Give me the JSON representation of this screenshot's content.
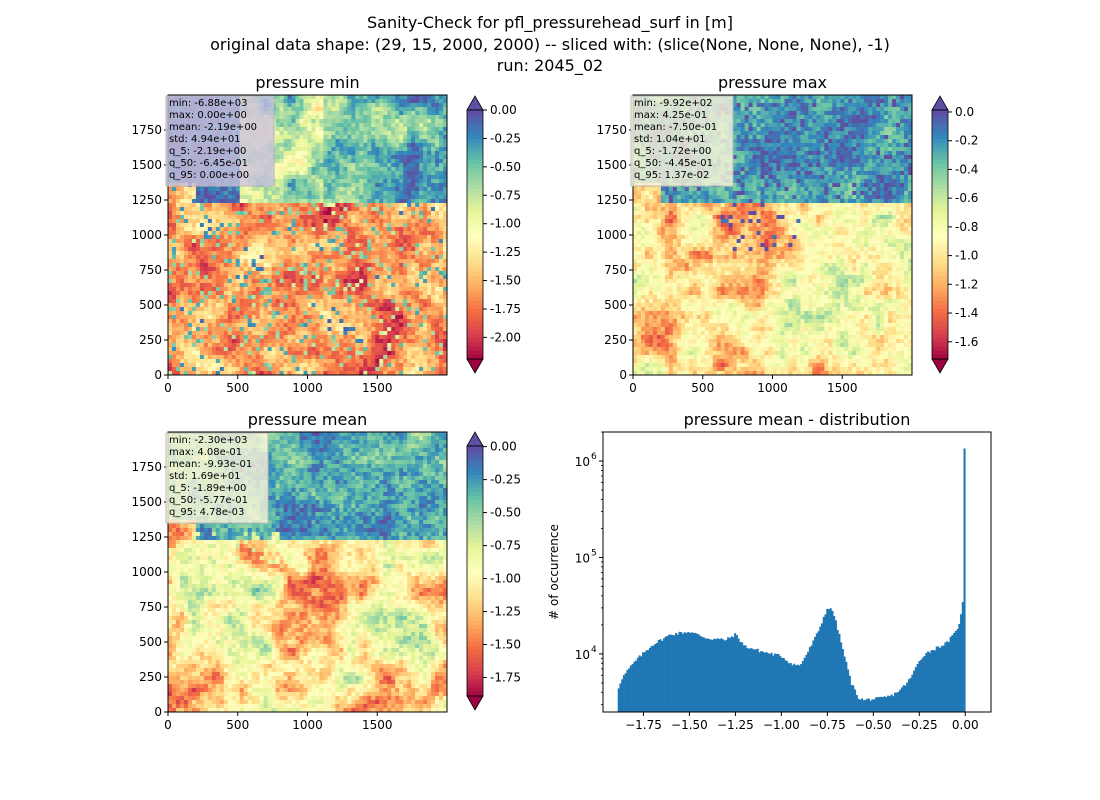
{
  "suptitle": {
    "line1": "Sanity-Check for pfl_pressurehead_surf in [m]",
    "line2": "original data shape: (29, 15, 2000, 2000) -- sliced with: (slice(None, None, None), -1)",
    "line3": "run: 2045_02"
  },
  "colors": {
    "colormap": "Spectral",
    "hist_bar": "#1f77b4",
    "stats_box_bg": "#f5f5dc"
  },
  "chart_data": [
    {
      "type": "heatmap",
      "title": "pressure min",
      "xlabel": "",
      "ylabel": "",
      "xlim": [
        0,
        2000
      ],
      "ylim": [
        0,
        2000
      ],
      "x_ticks": [
        "0",
        "500",
        "1000",
        "1500"
      ],
      "y_ticks": [
        "0",
        "250",
        "500",
        "750",
        "1000",
        "1250",
        "1500",
        "1750"
      ],
      "colorbar": {
        "range": [
          -2.19,
          0.0
        ],
        "ticks": [
          "0.00",
          "-0.25",
          "-0.50",
          "-0.75",
          "-1.00",
          "-1.25",
          "-1.50",
          "-1.75",
          "-2.00"
        ],
        "extend": "both"
      },
      "stats": [
        "min: -6.88e+03",
        "max: 0.00e+00",
        "mean: -2.19e+00",
        "std: 4.94e+01",
        "q_5: -2.19e+00",
        "q_50: -6.45e-01",
        "q_95: 0.00e+00"
      ]
    },
    {
      "type": "heatmap",
      "title": "pressure max",
      "xlabel": "",
      "ylabel": "",
      "xlim": [
        0,
        2000
      ],
      "ylim": [
        0,
        2000
      ],
      "x_ticks": [
        "0",
        "500",
        "1000",
        "1500"
      ],
      "y_ticks": [
        "0",
        "250",
        "500",
        "750",
        "1000",
        "1250",
        "1500",
        "1750"
      ],
      "colorbar": {
        "range": [
          -1.72,
          0.0137
        ],
        "ticks": [
          "0.0",
          "-0.2",
          "-0.4",
          "-0.6",
          "-0.8",
          "-1.0",
          "-1.2",
          "-1.4",
          "-1.6"
        ],
        "extend": "both"
      },
      "stats": [
        "min: -9.92e+02",
        "max: 4.25e-01",
        "mean: -7.50e-01",
        "std: 1.04e+01",
        "q_5: -1.72e+00",
        "q_50: -4.45e-01",
        "q_95: 1.37e-02"
      ]
    },
    {
      "type": "heatmap",
      "title": "pressure mean",
      "xlabel": "",
      "ylabel": "",
      "xlim": [
        0,
        2000
      ],
      "ylim": [
        0,
        2000
      ],
      "x_ticks": [
        "0",
        "500",
        "1000",
        "1500"
      ],
      "y_ticks": [
        "0",
        "250",
        "500",
        "750",
        "1000",
        "1250",
        "1500",
        "1750"
      ],
      "colorbar": {
        "range": [
          -1.89,
          0.00478
        ],
        "ticks": [
          "0.00",
          "-0.25",
          "-0.50",
          "-0.75",
          "-1.00",
          "-1.25",
          "-1.50",
          "-1.75"
        ],
        "extend": "both"
      },
      "stats": [
        "min: -2.30e+03",
        "max: 4.08e-01",
        "mean: -9.93e-01",
        "std: 1.69e+01",
        "q_5: -1.89e+00",
        "q_50: -5.77e-01",
        "q_95: 4.78e-03"
      ]
    },
    {
      "type": "bar",
      "title": "pressure mean - distribution",
      "xlabel": "",
      "ylabel": "# of occurrence",
      "yscale": "log",
      "xlim": [
        -1.97,
        0.14
      ],
      "ylim": [
        2500,
        2000000
      ],
      "x_ticks": [
        -1.75,
        -1.5,
        -1.25,
        -1.0,
        -0.75,
        -0.5,
        -0.25,
        0.0
      ],
      "x_tick_labels": [
        "−1.75",
        "−1.50",
        "−1.25",
        "−1.00",
        "−0.75",
        "−0.50",
        "−0.25",
        "0.00"
      ],
      "y_ticks": [
        10000,
        100000,
        1000000
      ],
      "y_tick_labels": [
        "10",
        "10",
        "10"
      ],
      "y_tick_exponents": [
        "4",
        "5",
        "6"
      ],
      "bin_range": [
        -1.89,
        0.0
      ],
      "profile_x": [
        -1.89,
        -1.87,
        -1.83,
        -1.78,
        -1.7,
        -1.6,
        -1.5,
        -1.4,
        -1.3,
        -1.25,
        -1.2,
        -1.1,
        -1.0,
        -0.95,
        -0.9,
        -0.85,
        -0.8,
        -0.75,
        -0.72,
        -0.69,
        -0.66,
        -0.62,
        -0.58,
        -0.55,
        -0.52,
        -0.49,
        -0.45,
        -0.4,
        -0.35,
        -0.3,
        -0.25,
        -0.22,
        -0.18,
        -0.1,
        -0.05,
        -0.03,
        -0.015,
        -0.006,
        0.0
      ],
      "profile_y": [
        4200,
        5500,
        7000,
        9000,
        12500,
        16000,
        17000,
        14500,
        14000,
        16000,
        12000,
        10500,
        9500,
        8000,
        7500,
        11000,
        17000,
        30000,
        28000,
        17000,
        10000,
        5000,
        3500,
        3300,
        3400,
        3400,
        3500,
        3700,
        4300,
        5500,
        8500,
        10000,
        11000,
        13000,
        17000,
        22000,
        30000,
        110000,
        1350000
      ]
    }
  ]
}
